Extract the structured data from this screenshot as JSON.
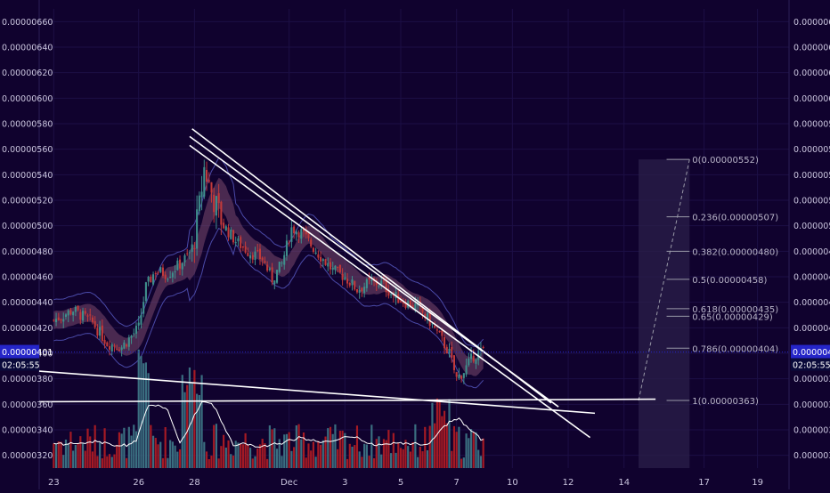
{
  "theme": {
    "background": "#10022e",
    "grid": "#1c0f45",
    "axis_text": "#c9c4dd",
    "bull": "#3f8f8c",
    "bear": "#c23a3a",
    "vol_bull": "#3a6e80",
    "vol_bear": "#a51a24",
    "band_fill": "#7a4a6e",
    "envelope": "#4a4aa8",
    "trendline": "#ffffff",
    "price_badge": "#2525c8",
    "fib_line": "#9a9aa8",
    "fib_panel": "#2a1f4a"
  },
  "chart_data": {
    "type": "candlestick",
    "title": "",
    "xlabel": "",
    "ylabel": "",
    "ylim": [
      3.1e-06,
      6.7e-06
    ],
    "y_ticks": [
      "0.00000320",
      "0.00000340",
      "0.00000360",
      "0.00000380",
      "0.00000400",
      "0.00000420",
      "0.00000440",
      "0.00000460",
      "0.00000480",
      "0.00000500",
      "0.00000520",
      "0.00000540",
      "0.00000560",
      "0.00000580",
      "0.00000600",
      "0.00000620",
      "0.00000640",
      "0.00000660"
    ],
    "x_ticks": [
      {
        "label": "23",
        "bar": 0
      },
      {
        "label": "26",
        "bar": 35
      },
      {
        "label": "28",
        "bar": 58
      },
      {
        "label": "Dec",
        "bar": 97
      },
      {
        "label": "3",
        "bar": 120
      },
      {
        "label": "5",
        "bar": 143
      },
      {
        "label": "7",
        "bar": 166
      },
      {
        "label": "10",
        "bar": 189
      },
      {
        "label": "12",
        "bar": 212
      },
      {
        "label": "14",
        "bar": 235
      },
      {
        "label": "17",
        "bar": 268
      },
      {
        "label": "19",
        "bar": 290
      }
    ],
    "x_range": [
      -6,
      303
    ],
    "last_price": "0.00000401",
    "countdown": "02:05:55",
    "close_path": [
      [
        0,
        426
      ],
      [
        8,
        434
      ],
      [
        16,
        424
      ],
      [
        22,
        408
      ],
      [
        28,
        405
      ],
      [
        35,
        420
      ],
      [
        38,
        452
      ],
      [
        42,
        465
      ],
      [
        47,
        462
      ],
      [
        52,
        470
      ],
      [
        57,
        480
      ],
      [
        60,
        515
      ],
      [
        62,
        545
      ],
      [
        66,
        520
      ],
      [
        70,
        500
      ],
      [
        75,
        488
      ],
      [
        80,
        480
      ],
      [
        86,
        474
      ],
      [
        90,
        458
      ],
      [
        94,
        470
      ],
      [
        98,
        498
      ],
      [
        102,
        495
      ],
      [
        106,
        485
      ],
      [
        110,
        476
      ],
      [
        115,
        465
      ],
      [
        120,
        460
      ],
      [
        125,
        450
      ],
      [
        130,
        455
      ],
      [
        135,
        455
      ],
      [
        140,
        445
      ],
      [
        145,
        440
      ],
      [
        150,
        436
      ],
      [
        155,
        425
      ],
      [
        160,
        410
      ],
      [
        163,
        400
      ],
      [
        166,
        380
      ],
      [
        169,
        386
      ],
      [
        173,
        398
      ],
      [
        177,
        402
      ]
    ],
    "candles": [],
    "fibonacci": {
      "start_bar": 241,
      "end_bar": 262,
      "levels": [
        {
          "label": "0(0.00000552)",
          "value": 5.52e-06
        },
        {
          "label": "0.236(0.00000507)",
          "value": 5.07e-06
        },
        {
          "label": "0.382(0.00000480)",
          "value": 4.8e-06
        },
        {
          "label": "0.5(0.00000458)",
          "value": 4.58e-06
        },
        {
          "label": "0.618(0.00000435)",
          "value": 4.35e-06
        },
        {
          "label": "0.65(0.00000429)",
          "value": 4.29e-06
        },
        {
          "label": "0.786(0.00000404)",
          "value": 4.04e-06
        },
        {
          "label": "1(0.00000363)",
          "value": 3.63e-06
        }
      ]
    },
    "trendlines": [
      {
        "from": [
          -6,
          3.86e-06
        ],
        "to": [
          223,
          3.53e-06
        ]
      },
      {
        "from": [
          -6,
          3.62e-06
        ],
        "to": [
          248,
          3.64e-06
        ]
      },
      {
        "from": [
          57,
          5.76e-06
        ],
        "to": [
          205,
          3.61e-06
        ]
      },
      {
        "from": [
          56,
          5.7e-06
        ],
        "to": [
          208,
          3.58e-06
        ]
      },
      {
        "from": [
          56,
          5.63e-06
        ],
        "to": [
          221,
          3.34e-06
        ]
      }
    ]
  }
}
